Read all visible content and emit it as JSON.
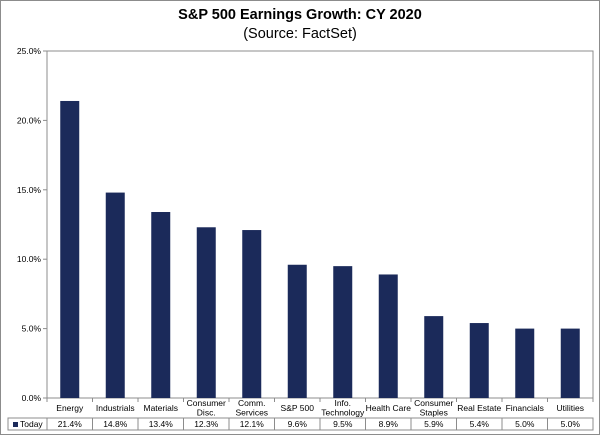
{
  "chart_data": {
    "type": "bar",
    "title": "S&P 500 Earnings Growth: CY 2020",
    "subtitle": "(Source: FactSet)",
    "categories": [
      [
        "Energy"
      ],
      [
        "Industrials"
      ],
      [
        "Materials"
      ],
      [
        "Consumer",
        "Disc."
      ],
      [
        "Comm.",
        "Services"
      ],
      [
        "S&P 500"
      ],
      [
        "Info.",
        "Technology"
      ],
      [
        "Health Care"
      ],
      [
        "Consumer",
        "Staples"
      ],
      [
        "Real Estate"
      ],
      [
        "Financials"
      ],
      [
        "Utilities"
      ]
    ],
    "series": [
      {
        "name": "Today",
        "values": [
          21.4,
          14.8,
          13.4,
          12.3,
          12.1,
          9.6,
          9.5,
          8.9,
          5.9,
          5.4,
          5.0,
          5.0
        ],
        "labels": [
          "21.4%",
          "14.8%",
          "13.4%",
          "12.3%",
          "12.1%",
          "9.6%",
          "9.5%",
          "8.9%",
          "5.9%",
          "5.4%",
          "5.0%",
          "5.0%"
        ]
      }
    ],
    "ylim": [
      0,
      25
    ],
    "yticks": [
      "0.0%",
      "5.0%",
      "10.0%",
      "15.0%",
      "20.0%",
      "25.0%"
    ],
    "grid": false,
    "legend": "data-table",
    "bar_color": "#1b2a5a"
  }
}
